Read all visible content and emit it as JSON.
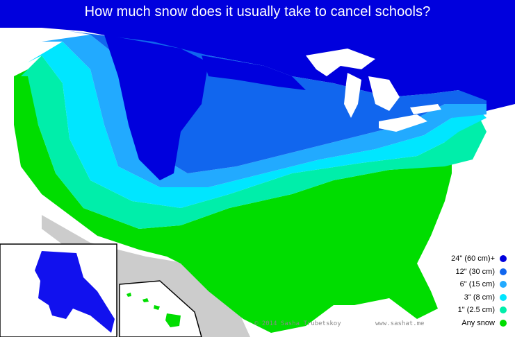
{
  "title": "How much snow does it usually take to cancel schools?",
  "legend": [
    {
      "label": "24\" (60 cm)+",
      "color": "#0000dd"
    },
    {
      "label": "12\" (30 cm)",
      "color": "#1166ee"
    },
    {
      "label": "6\" (15 cm)",
      "color": "#22aaff"
    },
    {
      "label": "3\" (8 cm)",
      "color": "#00e6ff"
    },
    {
      "label": "1\" (2.5 cm)",
      "color": "#00eeaa"
    },
    {
      "label": "Any snow",
      "color": "#00dd00"
    }
  ],
  "credits": {
    "author": "© 2014 Sasha Trubetskoy",
    "website": "www.sashat.me"
  },
  "colors": {
    "canada": "#0000dd",
    "ocean": "#ffffff",
    "mexico": "#cccccc",
    "lakes": "#ffffff"
  }
}
